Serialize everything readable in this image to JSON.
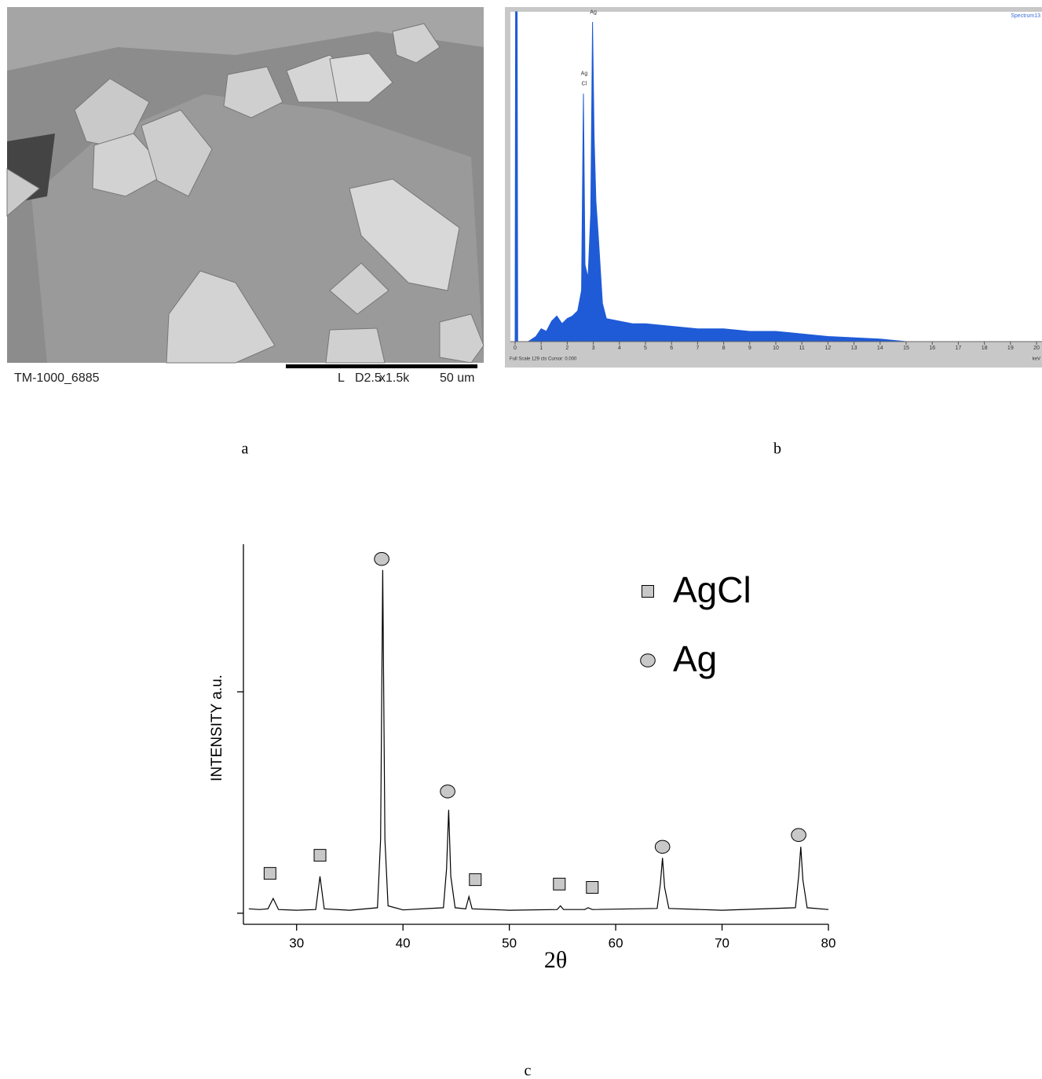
{
  "figure_labels": [
    "a",
    "b",
    "c"
  ],
  "sem_image": {
    "id": "TM-1000_6885",
    "mode": "L",
    "settings": "D2.5",
    "magnification": "x1.5k",
    "scale": "50 um"
  },
  "chart_data": [
    {
      "type": "area",
      "title": "Spectrum13",
      "footer": "Full Scale 129 cts Cursor: 0.000",
      "x_unit": "keV",
      "color": "#1f5bd6",
      "x": [
        0,
        0.02,
        0.08,
        0.1,
        0.5,
        0.8,
        1,
        1.2,
        1.4,
        1.6,
        1.8,
        2.0,
        2.2,
        2.4,
        2.55,
        2.62,
        2.68,
        2.8,
        2.9,
        2.97,
        3.03,
        3.1,
        3.2,
        3.35,
        3.5,
        4,
        4.5,
        5,
        6,
        7,
        8,
        9,
        10,
        11,
        12,
        13,
        14,
        14.5,
        15,
        20
      ],
      "values": [
        0,
        129,
        129,
        0,
        0,
        2,
        5,
        4,
        8,
        10,
        7,
        9,
        10,
        12,
        20,
        97,
        30,
        25,
        50,
        125,
        80,
        55,
        40,
        15,
        9,
        8,
        7,
        7,
        6,
        5,
        5,
        4,
        4,
        3,
        2,
        1.5,
        1,
        0.5,
        0,
        0
      ],
      "xlim": [
        -0.18,
        20.21
      ],
      "ylim": [
        0,
        129
      ],
      "xticks": [
        0,
        1,
        2,
        3,
        4,
        5,
        6,
        7,
        8,
        9,
        10,
        11,
        12,
        13,
        14,
        15,
        16,
        17,
        18,
        19,
        20
      ],
      "annotations": [
        {
          "text": "Ag",
          "x": 3.0,
          "y": 127
        },
        {
          "text": "Ag",
          "x": 2.65,
          "y": 103
        },
        {
          "text": "Cl",
          "x": 2.65,
          "y": 99
        }
      ]
    },
    {
      "type": "line",
      "xlabel": "2θ",
      "ylabel": "INTENSITY a.u.",
      "color": "#000000",
      "x": [
        25.5,
        26.5,
        27.3,
        27.8,
        28.3,
        30,
        31.8,
        32.2,
        32.6,
        35,
        37.6,
        37.9,
        38.1,
        38.3,
        38.6,
        40,
        43.8,
        44.1,
        44.3,
        44.5,
        44.9,
        45.9,
        46.2,
        46.5,
        50,
        54.5,
        54.8,
        55.1,
        57.1,
        57.4,
        57.8,
        63.9,
        64.2,
        64.4,
        64.6,
        65,
        70,
        76.9,
        77.2,
        77.4,
        77.6,
        78,
        80
      ],
      "values": [
        1.2,
        1,
        1.2,
        4,
        1,
        0.8,
        1,
        10,
        1.2,
        0.8,
        1.5,
        20,
        93,
        20,
        2,
        0.9,
        1.5,
        12,
        28,
        10,
        1.5,
        1.2,
        4.5,
        1.2,
        0.8,
        1,
        2,
        1,
        1,
        1.5,
        1,
        1.3,
        8,
        15,
        7,
        1.3,
        0.8,
        1.5,
        10,
        18,
        9,
        1.5,
        1
      ],
      "xlim": [
        25,
        80
      ],
      "ylim": [
        -3,
        100
      ],
      "xticks": [
        30,
        40,
        50,
        60,
        70,
        80
      ],
      "yticks": [
        0,
        60
      ],
      "legend": "upper right",
      "markers": [
        {
          "name": "AgCl",
          "shape": "square",
          "color": "#c8c8c8",
          "x": [
            27.5,
            32.2,
            46.8,
            54.7,
            57.8
          ],
          "y": [
            10.8,
            15.7,
            9.1,
            7.9,
            7
          ]
        },
        {
          "name": "Ag",
          "shape": "circle",
          "color": "#c8c8c8",
          "x": [
            38.0,
            44.2,
            64.4,
            77.2
          ],
          "y": [
            96,
            33,
            18,
            21.2
          ]
        }
      ]
    }
  ]
}
